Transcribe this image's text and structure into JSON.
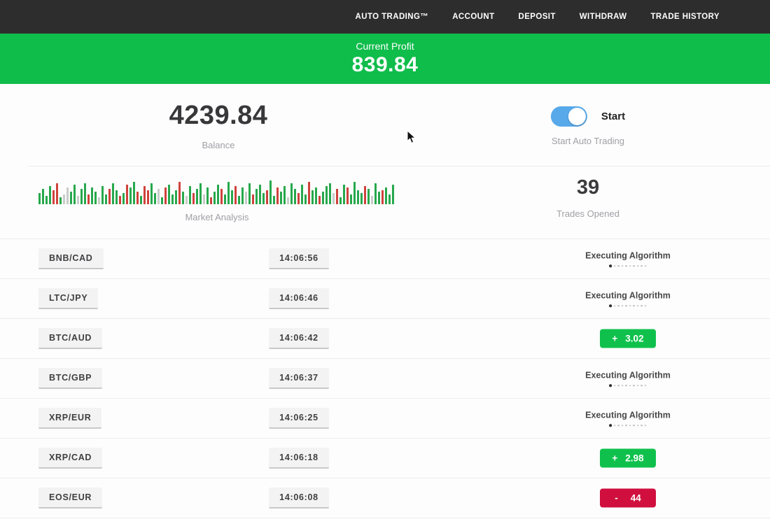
{
  "nav": {
    "items": [
      {
        "label": "AUTO TRADING™"
      },
      {
        "label": "ACCOUNT"
      },
      {
        "label": "DEPOSIT"
      },
      {
        "label": "WITHDRAW"
      },
      {
        "label": "TRADE HISTORY"
      }
    ]
  },
  "banner": {
    "label": "Current Profit",
    "value": "839.84"
  },
  "stats": {
    "balance": {
      "value": "4239.84",
      "label": "Balance"
    },
    "auto_trading": {
      "toggle_label": "Start",
      "label": "Start Auto Trading",
      "toggle_on": true
    },
    "market": {
      "label": "Market Analysis"
    },
    "trades_opened": {
      "value": "39",
      "label": "Trades Opened"
    }
  },
  "market_chart": {
    "type": "bar",
    "description": "decorative market analysis candles strip, green/red/pale bars, bottom-aligned",
    "bar_colors": {
      "g": "#27a84c",
      "r": "#cf423c",
      "l": "#c9cdc9"
    },
    "bars": [
      "g16",
      "g22",
      "g12",
      "g26",
      "r20",
      "r30",
      "g10",
      "l14",
      "l24",
      "g18",
      "g28",
      "l12",
      "g22",
      "g30",
      "r14",
      "g24",
      "g18",
      "l10",
      "g26",
      "g14",
      "r22",
      "g30",
      "g20",
      "r12",
      "g16",
      "r28",
      "g24",
      "g32",
      "r18",
      "g12",
      "r26",
      "r20",
      "g30",
      "g16",
      "l22",
      "g10",
      "r24",
      "g28",
      "g14",
      "g20",
      "r32",
      "g18",
      "l12",
      "g26",
      "r16",
      "g22",
      "g30",
      "l14",
      "g24",
      "r10",
      "g18",
      "g28",
      "r22",
      "g14",
      "g32",
      "g20",
      "r26",
      "g12",
      "g24",
      "l18",
      "g30",
      "r14",
      "g22",
      "g28",
      "g16",
      "r20",
      "g34",
      "g12",
      "r24",
      "g18",
      "g26",
      "l10",
      "g30",
      "g22",
      "r16",
      "g28",
      "g14",
      "r32",
      "g20",
      "g24",
      "r12",
      "g18",
      "g26",
      "g30",
      "l16",
      "r22",
      "g10",
      "g28",
      "r24",
      "g14",
      "g32",
      "g20",
      "g16",
      "r26",
      "g22",
      "l12",
      "g30",
      "g18",
      "r20",
      "g24",
      "g14",
      "g28"
    ]
  },
  "trades": {
    "rows": [
      {
        "pair": "BNB/CAD",
        "time": "14:06:56",
        "status": {
          "type": "executing",
          "label": "Executing Algorithm",
          "dots_total": 10,
          "dots_active": 1
        }
      },
      {
        "pair": "LTC/JPY",
        "time": "14:06:46",
        "status": {
          "type": "executing",
          "label": "Executing Algorithm",
          "dots_total": 10,
          "dots_active": 1
        }
      },
      {
        "pair": "BTC/AUD",
        "time": "14:06:42",
        "status": {
          "type": "profit",
          "sign": "+",
          "value": "3.02"
        }
      },
      {
        "pair": "BTC/GBP",
        "time": "14:06:37",
        "status": {
          "type": "executing",
          "label": "Executing Algorithm",
          "dots_total": 10,
          "dots_active": 1
        }
      },
      {
        "pair": "XRP/EUR",
        "time": "14:06:25",
        "status": {
          "type": "executing",
          "label": "Executing Algorithm",
          "dots_total": 10,
          "dots_active": 1
        }
      },
      {
        "pair": "XRP/CAD",
        "time": "14:06:18",
        "status": {
          "type": "profit",
          "sign": "+",
          "value": "2.98"
        }
      },
      {
        "pair": "EOS/EUR",
        "time": "14:06:08",
        "status": {
          "type": "loss",
          "sign": "-",
          "value": "44"
        }
      }
    ]
  },
  "colors": {
    "nav_bg": "#2e2d2d",
    "banner_green": "#0fbd4b",
    "profit_green": "#0fc14c",
    "loss_red": "#d00f3e",
    "toggle_blue": "#58a9e9"
  }
}
